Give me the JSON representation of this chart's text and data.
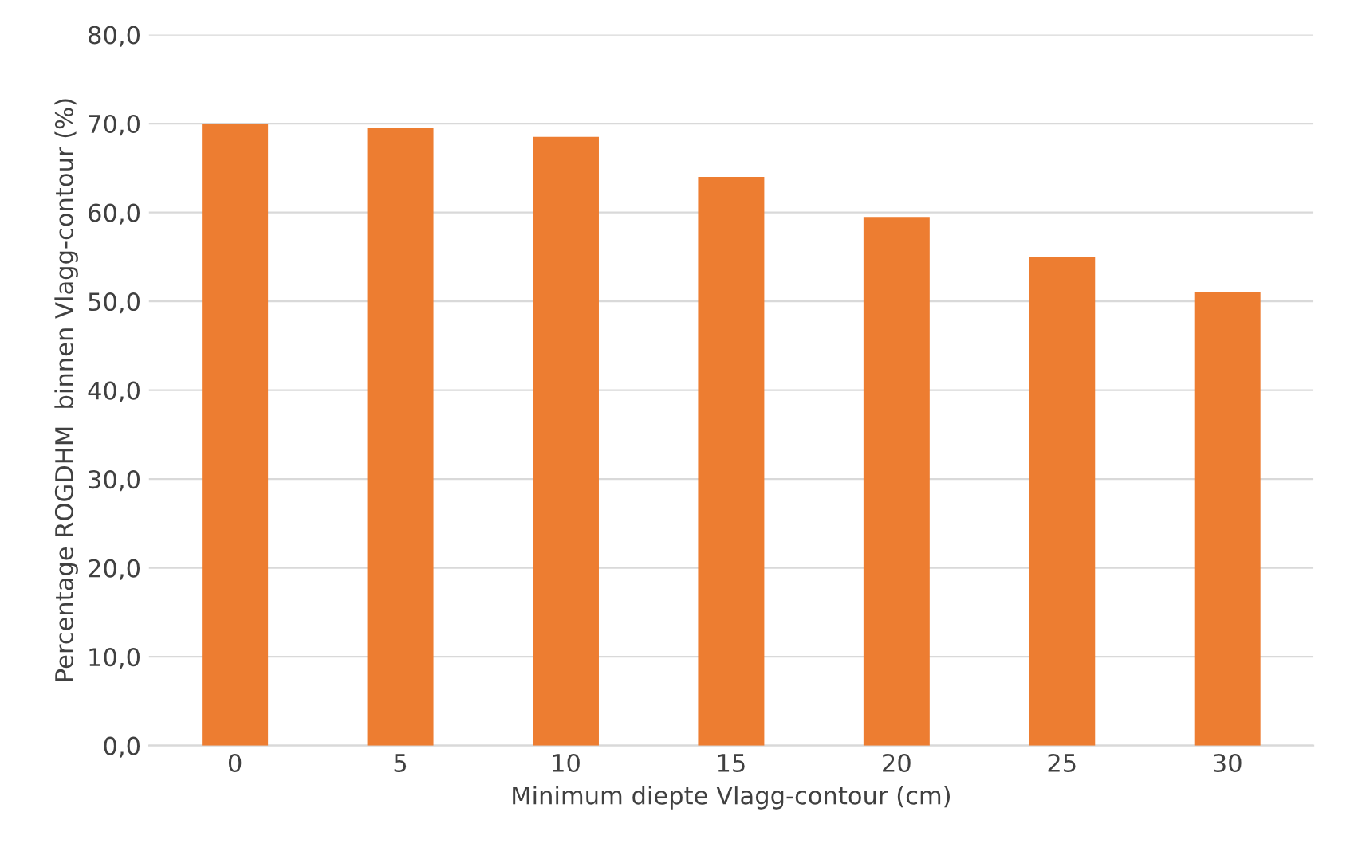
{
  "chart_data": {
    "type": "bar",
    "xlabel": "Minimum diepte Vlagg-contour (cm)",
    "ylabel": "Percentage ROGDHM  binnen Vlagg-contour (%)",
    "categories": [
      "0",
      "5",
      "10",
      "15",
      "20",
      "25",
      "30"
    ],
    "values": [
      70,
      69.5,
      68.5,
      64,
      59.5,
      55,
      51
    ],
    "color": "#ed7d31",
    "ylim": [
      0,
      80
    ],
    "yticks": [
      {
        "value": 0,
        "label": "0,0"
      },
      {
        "value": 10,
        "label": "10,0"
      },
      {
        "value": 20,
        "label": "20,0"
      },
      {
        "value": 30,
        "label": "30,0"
      },
      {
        "value": 40,
        "label": "40,0"
      },
      {
        "value": 50,
        "label": "50,0"
      },
      {
        "value": 60,
        "label": "60,0"
      },
      {
        "value": 70,
        "label": "70,0"
      },
      {
        "value": 80,
        "label": "80,0"
      }
    ],
    "grid": "y"
  }
}
